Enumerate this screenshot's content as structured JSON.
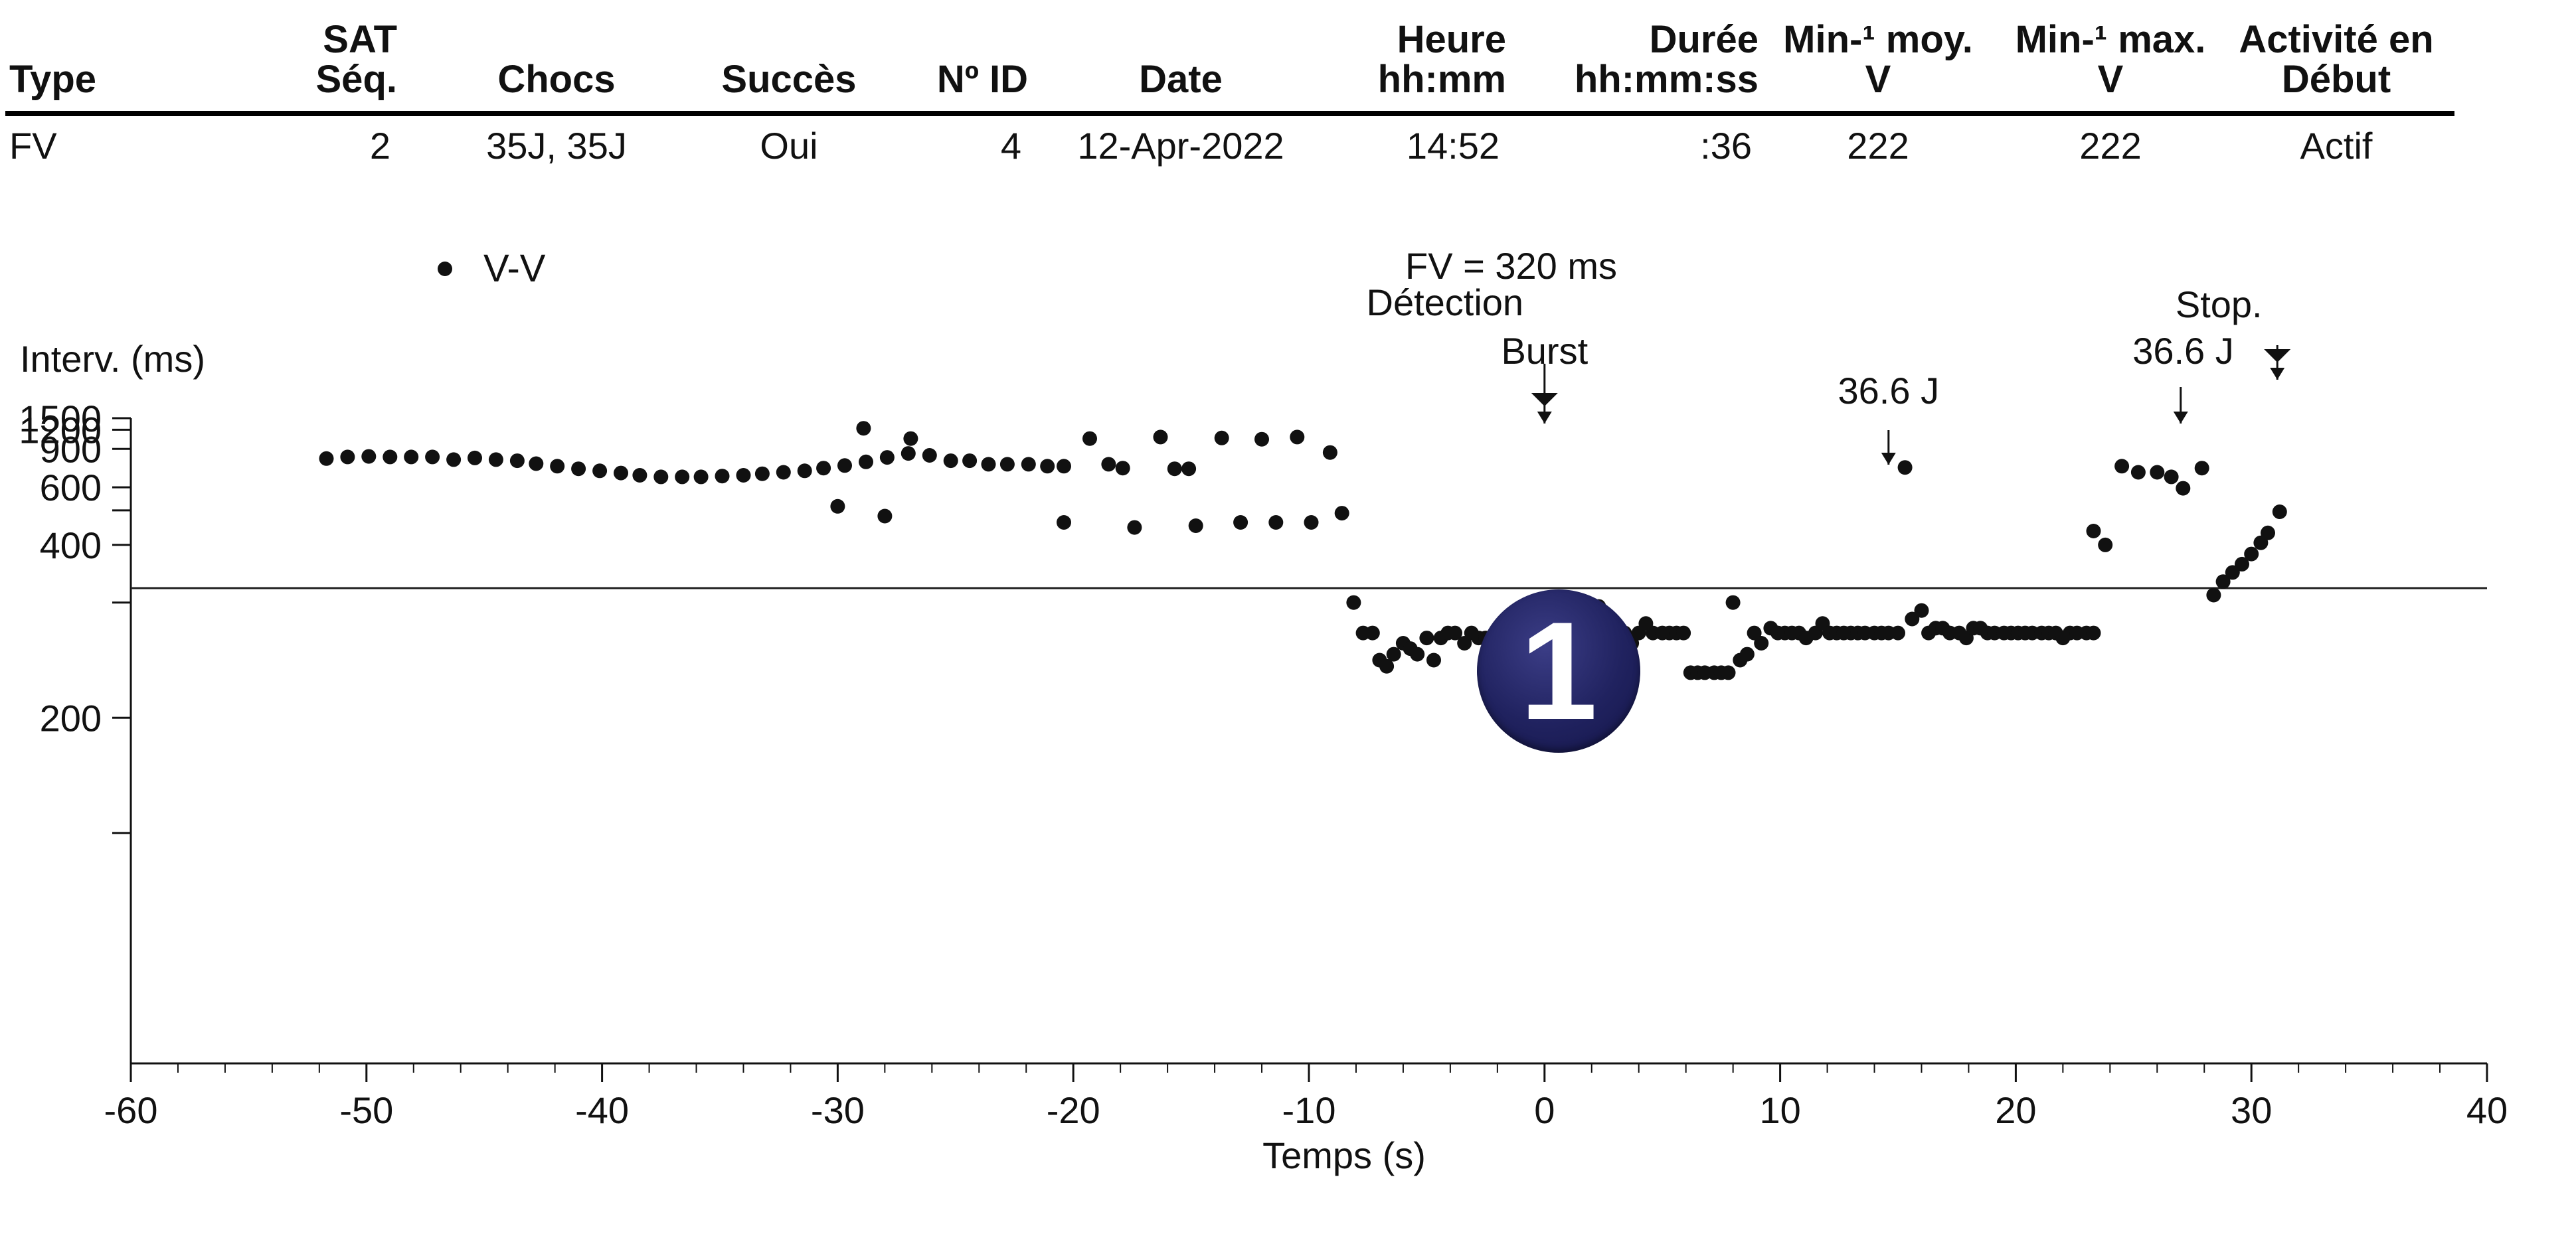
{
  "table": {
    "headers": {
      "type": [
        "Type"
      ],
      "sat_seq": [
        "SAT",
        "Séq."
      ],
      "chocs": [
        "Chocs"
      ],
      "succes": [
        "Succès"
      ],
      "id": [
        "Nº ID"
      ],
      "date": [
        "Date"
      ],
      "heure": [
        "Heure",
        "hh:mm"
      ],
      "duree": [
        "Durée",
        "hh:mm:ss"
      ],
      "min_moy": [
        "Min-¹ moy.",
        "V"
      ],
      "min_max": [
        "Min-¹ max.",
        "V"
      ],
      "activite": [
        "Activité en",
        "Début"
      ]
    },
    "row": {
      "type": "FV",
      "sat_seq": "2",
      "chocs": "35J, 35J",
      "succes": "Oui",
      "id": "4",
      "date": "12-Apr-2022",
      "heure": "14:52",
      "duree": ":36",
      "min_moy": "222",
      "min_max": "222",
      "activite": "Actif"
    }
  },
  "badge": {
    "label": "1",
    "color": "#20225f"
  },
  "chart_data": {
    "type": "scatter",
    "legend": {
      "label": "V-V",
      "position": "top-left"
    },
    "xlabel": "Temps (s)",
    "ylabel": "Interv. (ms)",
    "xlim": [
      -60,
      40
    ],
    "ylim": [
      100,
      1500
    ],
    "yscale": "reciprocal",
    "xticks": [
      -60,
      -50,
      -40,
      -30,
      -20,
      -10,
      0,
      10,
      20,
      30,
      40
    ],
    "xtick_labels": [
      "-60",
      "-50",
      "-40",
      "-30",
      "-20",
      "-10",
      "0",
      "10",
      "20",
      "30",
      "40"
    ],
    "yticks": [
      1500,
      1200,
      900,
      600,
      500,
      400,
      300,
      200,
      150
    ],
    "ytick_labels": [
      "1500",
      "1200",
      "900",
      "600",
      "",
      "400",
      "",
      "200",
      ""
    ],
    "threshold": {
      "value": 320,
      "label": "FV = 320 ms"
    },
    "events": [
      {
        "t": 0,
        "labels": [
          "Détection",
          "Burst"
        ],
        "arrow": "double"
      },
      {
        "t": 14.6,
        "labels": [
          "36.6 J"
        ],
        "arrow": "single"
      },
      {
        "t": 27.0,
        "labels": [
          "36.6 J"
        ],
        "arrow": "single"
      },
      {
        "t": 31.1,
        "labels": [
          "Stop."
        ],
        "arrow": "double"
      }
    ],
    "series": [
      {
        "name": "V-V",
        "points": [
          [
            -51.7,
            800
          ],
          [
            -50.8,
            815
          ],
          [
            -49.9,
            820
          ],
          [
            -49.0,
            815
          ],
          [
            -48.1,
            815
          ],
          [
            -47.2,
            815
          ],
          [
            -46.3,
            790
          ],
          [
            -45.4,
            805
          ],
          [
            -44.5,
            790
          ],
          [
            -43.6,
            780
          ],
          [
            -42.8,
            755
          ],
          [
            -41.9,
            735
          ],
          [
            -41.0,
            715
          ],
          [
            -40.1,
            700
          ],
          [
            -39.2,
            685
          ],
          [
            -38.4,
            670
          ],
          [
            -37.5,
            660
          ],
          [
            -36.6,
            660
          ],
          [
            -35.8,
            660
          ],
          [
            -34.9,
            665
          ],
          [
            -34.0,
            670
          ],
          [
            -33.2,
            680
          ],
          [
            -32.3,
            690
          ],
          [
            -31.4,
            700
          ],
          [
            -30.6,
            720
          ],
          [
            -29.7,
            740
          ],
          [
            -28.8,
            770
          ],
          [
            -27.9,
            810
          ],
          [
            -27.0,
            850
          ],
          [
            -30.0,
            515
          ],
          [
            -28.9,
            1230
          ],
          [
            -28.0,
            480
          ],
          [
            -26.9,
            1040
          ],
          [
            -26.1,
            830
          ],
          [
            -25.2,
            780
          ],
          [
            -24.4,
            780
          ],
          [
            -23.6,
            750
          ],
          [
            -22.8,
            750
          ],
          [
            -21.9,
            750
          ],
          [
            -21.1,
            735
          ],
          [
            -20.4,
            735
          ],
          [
            -20.4,
            460
          ],
          [
            -19.3,
            1040
          ],
          [
            -18.5,
            750
          ],
          [
            -17.9,
            720
          ],
          [
            -17.4,
            445
          ],
          [
            -16.3,
            1065
          ],
          [
            -15.7,
            715
          ],
          [
            -15.1,
            715
          ],
          [
            -14.8,
            450
          ],
          [
            -13.7,
            1050
          ],
          [
            -12.9,
            460
          ],
          [
            -12.0,
            1030
          ],
          [
            -11.4,
            460
          ],
          [
            -10.5,
            1065
          ],
          [
            -9.9,
            460
          ],
          [
            -9.1,
            860
          ],
          [
            -8.6,
            490
          ],
          [
            -8.1,
            300
          ],
          [
            -7.7,
            265
          ],
          [
            -7.3,
            265
          ],
          [
            -7.0,
            240
          ],
          [
            -6.7,
            235
          ],
          [
            -6.4,
            245
          ],
          [
            -6.0,
            255
          ],
          [
            -5.7,
            250
          ],
          [
            -5.4,
            245
          ],
          [
            -5.0,
            260
          ],
          [
            -4.7,
            240
          ],
          [
            -4.4,
            260
          ],
          [
            -4.1,
            265
          ],
          [
            -3.8,
            265
          ],
          [
            -3.4,
            255
          ],
          [
            -3.1,
            265
          ],
          [
            -2.8,
            260
          ],
          [
            -2.5,
            260
          ],
          [
            -2.1,
            260
          ],
          [
            -1.8,
            260
          ],
          [
            -1.5,
            260
          ],
          [
            -1.2,
            260
          ],
          [
            -0.9,
            265
          ],
          [
            -0.5,
            260
          ],
          [
            -0.2,
            265
          ],
          [
            0.1,
            265
          ],
          [
            0.4,
            255
          ],
          [
            0.7,
            245
          ],
          [
            1.0,
            245
          ],
          [
            1.3,
            245
          ],
          [
            1.7,
            245
          ],
          [
            2.0,
            245
          ],
          [
            2.3,
            295
          ],
          [
            2.5,
            255
          ],
          [
            2.8,
            260
          ],
          [
            3.1,
            270
          ],
          [
            3.4,
            265
          ],
          [
            3.7,
            255
          ],
          [
            4.0,
            265
          ],
          [
            4.3,
            275
          ],
          [
            4.6,
            265
          ],
          [
            5.0,
            265
          ],
          [
            5.3,
            265
          ],
          [
            5.6,
            265
          ],
          [
            5.9,
            265
          ],
          [
            6.2,
            230
          ],
          [
            6.5,
            230
          ],
          [
            6.8,
            230
          ],
          [
            7.2,
            230
          ],
          [
            7.5,
            230
          ],
          [
            7.8,
            230
          ],
          [
            8.0,
            300
          ],
          [
            8.3,
            240
          ],
          [
            8.6,
            245
          ],
          [
            8.9,
            265
          ],
          [
            9.2,
            255
          ],
          [
            9.6,
            270
          ],
          [
            9.9,
            265
          ],
          [
            10.2,
            265
          ],
          [
            10.5,
            265
          ],
          [
            10.8,
            265
          ],
          [
            11.1,
            260
          ],
          [
            11.5,
            265
          ],
          [
            11.8,
            275
          ],
          [
            12.1,
            265
          ],
          [
            12.4,
            265
          ],
          [
            12.7,
            265
          ],
          [
            13.0,
            265
          ],
          [
            13.3,
            265
          ],
          [
            13.6,
            265
          ],
          [
            14.0,
            265
          ],
          [
            14.3,
            265
          ],
          [
            14.6,
            265
          ],
          [
            15.0,
            265
          ],
          [
            15.3,
            725
          ],
          [
            15.6,
            280
          ],
          [
            16.0,
            290
          ],
          [
            16.3,
            265
          ],
          [
            16.6,
            270
          ],
          [
            16.9,
            270
          ],
          [
            17.2,
            265
          ],
          [
            17.6,
            265
          ],
          [
            17.9,
            260
          ],
          [
            18.2,
            270
          ],
          [
            18.5,
            270
          ],
          [
            18.8,
            265
          ],
          [
            19.1,
            265
          ],
          [
            19.5,
            265
          ],
          [
            19.8,
            265
          ],
          [
            20.1,
            265
          ],
          [
            20.4,
            265
          ],
          [
            20.7,
            265
          ],
          [
            21.1,
            265
          ],
          [
            21.4,
            265
          ],
          [
            21.7,
            265
          ],
          [
            22.0,
            260
          ],
          [
            22.3,
            265
          ],
          [
            22.6,
            265
          ],
          [
            23.0,
            265
          ],
          [
            23.3,
            265
          ],
          [
            23.3,
            435
          ],
          [
            23.8,
            400
          ],
          [
            24.5,
            735
          ],
          [
            25.2,
            690
          ],
          [
            26.0,
            690
          ],
          [
            26.6,
            660
          ],
          [
            27.1,
            595
          ],
          [
            27.9,
            720
          ],
          [
            28.4,
            310
          ],
          [
            28.8,
            330
          ],
          [
            29.2,
            345
          ],
          [
            29.6,
            360
          ],
          [
            30.0,
            380
          ],
          [
            30.4,
            405
          ],
          [
            30.7,
            430
          ],
          [
            31.2,
            495
          ]
        ]
      }
    ]
  }
}
